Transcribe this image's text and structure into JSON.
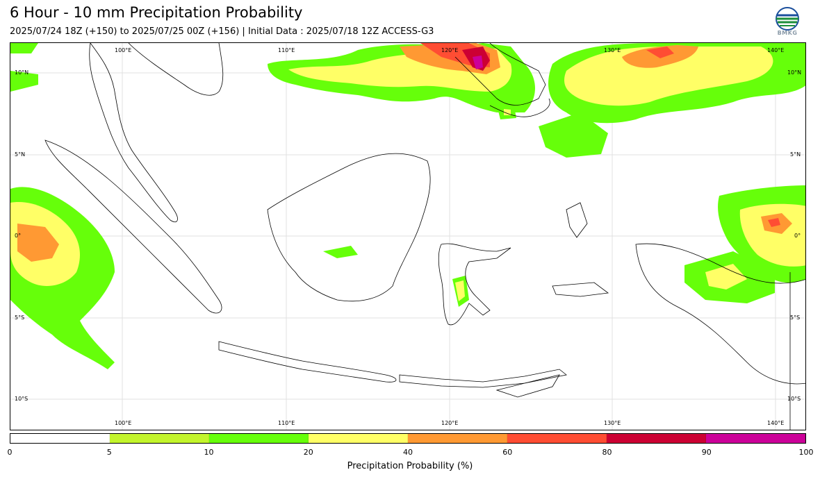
{
  "title": "6 Hour - 10 mm Precipitation Probability",
  "subtitle": "2025/07/24 18Z (+150) to 2025/07/25 00Z (+156) | Initial Data : 2025/07/18 12Z ACCESS-G3",
  "logo": {
    "text": "BMKG",
    "icon": "bmkg-logo-icon"
  },
  "map": {
    "lon_labels": [
      "100°E",
      "110°E",
      "120°E",
      "130°E",
      "140°E"
    ],
    "lat_labels": [
      "10°N",
      "5°N",
      "0°",
      "5°S",
      "10°S"
    ]
  },
  "colorbar": {
    "title": "Precipitation Probability (%)",
    "ticks": [
      "0",
      "5",
      "10",
      "20",
      "40",
      "60",
      "80",
      "90",
      "100"
    ],
    "colors": [
      "#ffffff",
      "#c3f52c",
      "#66ff0a",
      "#ffff66",
      "#ff9933",
      "#ff4d33",
      "#cc0033",
      "#cc0099"
    ]
  }
}
